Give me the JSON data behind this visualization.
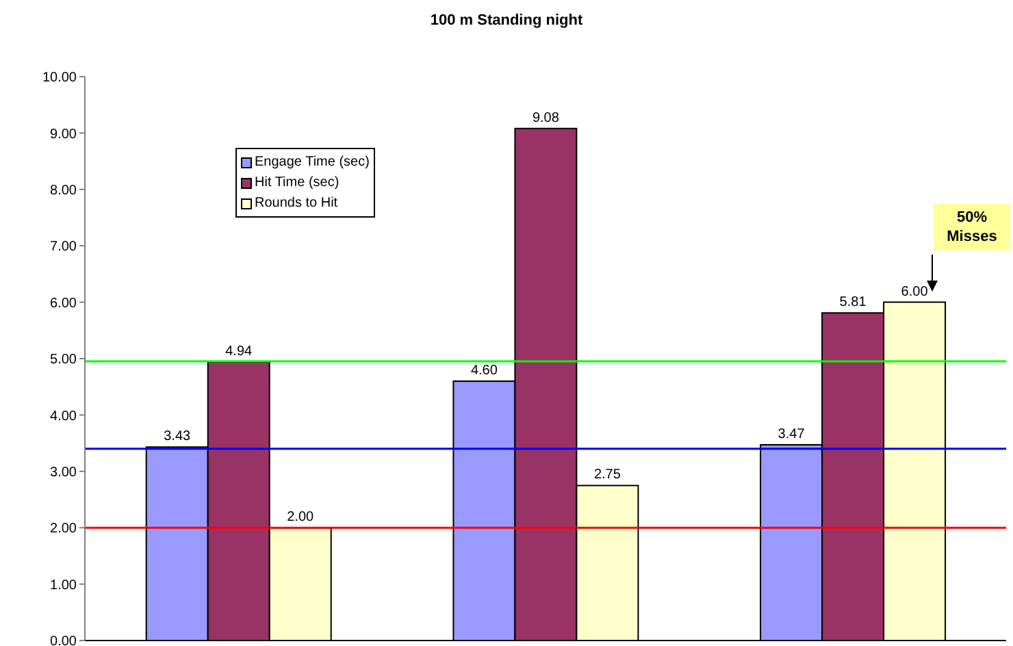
{
  "chart_data": {
    "type": "bar",
    "title": "100 m Standing night",
    "categories": [
      null,
      null,
      null
    ],
    "series": [
      {
        "name": "Engage Time (sec)",
        "color": "#9999ff",
        "values": [
          3.43,
          4.6,
          3.47
        ],
        "value_labels": [
          "3.43",
          "4.60",
          "3.47"
        ]
      },
      {
        "name": "Hit Time (sec)",
        "color": "#993366",
        "values": [
          4.94,
          9.08,
          5.81
        ],
        "value_labels": [
          "4.94",
          "9.08",
          "5.81"
        ]
      },
      {
        "name": "Rounds to Hit",
        "color": "#ffffcc",
        "values": [
          2.0,
          2.75,
          6.0
        ],
        "value_labels": [
          "2.00",
          "2.75",
          "6.00"
        ]
      }
    ],
    "ylim": [
      0,
      10
    ],
    "yticks": [
      {
        "value": 0,
        "label": "0.00"
      },
      {
        "value": 1,
        "label": "1.00"
      },
      {
        "value": 2,
        "label": "2.00"
      },
      {
        "value": 3,
        "label": "3.00"
      },
      {
        "value": 4,
        "label": "4.00"
      },
      {
        "value": 5,
        "label": "5.00"
      },
      {
        "value": 6,
        "label": "6.00"
      },
      {
        "value": 7,
        "label": "7.00"
      },
      {
        "value": 8,
        "label": "8.00"
      },
      {
        "value": 9,
        "label": "9.00"
      },
      {
        "value": 10,
        "label": "10.00"
      }
    ],
    "ref_lines": [
      {
        "axis": "y",
        "value": 4.95,
        "color": "#00ff00"
      },
      {
        "axis": "y",
        "value": 3.4,
        "color": "#0000ff"
      },
      {
        "axis": "y",
        "value": 2.0,
        "color": "#ff0000"
      }
    ],
    "annotations": [
      "50% Misses"
    ],
    "grid": false,
    "legend": "top left"
  }
}
